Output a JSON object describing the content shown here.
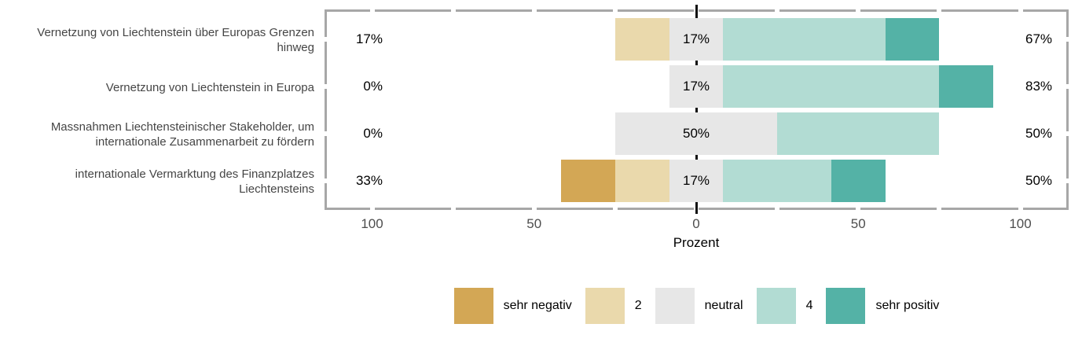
{
  "chart_data": {
    "type": "bar",
    "variant": "diverging-stacked-likert",
    "title": "",
    "xlabel": "Prozent",
    "x_ticks": [
      {
        "value": -100,
        "label": "100"
      },
      {
        "value": -50,
        "label": "50"
      },
      {
        "value": 0,
        "label": "0"
      },
      {
        "value": 50,
        "label": "50"
      },
      {
        "value": 100,
        "label": "100"
      }
    ],
    "x_minor_tick_values": [
      -100,
      -75,
      -50,
      -25,
      0,
      25,
      50,
      75,
      100
    ],
    "series": [
      {
        "name": "sehr negativ",
        "color": "#d3a755"
      },
      {
        "name": "2",
        "color": "#ead9ac"
      },
      {
        "name": "neutral",
        "color": "#e7e7e7"
      },
      {
        "name": "4",
        "color": "#b2dcd3"
      },
      {
        "name": "sehr positiv",
        "color": "#54b2a6"
      }
    ],
    "categories": [
      {
        "label": "Vernetzung von Liechtenstein über Europas Grenzen hinweg",
        "label_lines": [
          "Vernetzung von Liechtenstein über Europas Grenzen",
          "hinweg"
        ],
        "values": [
          0,
          16.67,
          16.67,
          50,
          16.67
        ],
        "low_label": "17%",
        "neutral_label": "17%",
        "high_label": "67%"
      },
      {
        "label": "Vernetzung von Liechtenstein in Europa",
        "label_lines": [
          "Vernetzung von Liechtenstein in Europa"
        ],
        "values": [
          0,
          0,
          16.67,
          66.67,
          16.67
        ],
        "low_label": "0%",
        "neutral_label": "17%",
        "high_label": "83%"
      },
      {
        "label": "Massnahmen Liechtensteinischer Stakeholder, um internationale Zusammenarbeit zu fördern",
        "label_lines": [
          "Massnahmen Liechtensteinischer Stakeholder, um",
          "internationale Zusammenarbeit zu fördern"
        ],
        "values": [
          0,
          0,
          50,
          50,
          0
        ],
        "low_label": "0%",
        "neutral_label": "50%",
        "high_label": "50%"
      },
      {
        "label": "internationale Vermarktung des Finanzplatzes Liechtensteins",
        "label_lines": [
          "internationale Vermarktung des Finanzplatzes",
          "Liechtensteins"
        ],
        "values": [
          16.67,
          16.67,
          16.67,
          33.33,
          16.67
        ],
        "low_label": "33%",
        "neutral_label": "17%",
        "high_label": "50%"
      }
    ],
    "legend_labels": [
      "sehr negativ",
      "2",
      "neutral",
      "4",
      "sehr positiv"
    ],
    "colors": {
      "panel_border": "#a7a7a7",
      "zero_line": "#111111",
      "axis_text": "#4d4d4d",
      "category_text": "#454545",
      "value_text": "#000000"
    }
  }
}
